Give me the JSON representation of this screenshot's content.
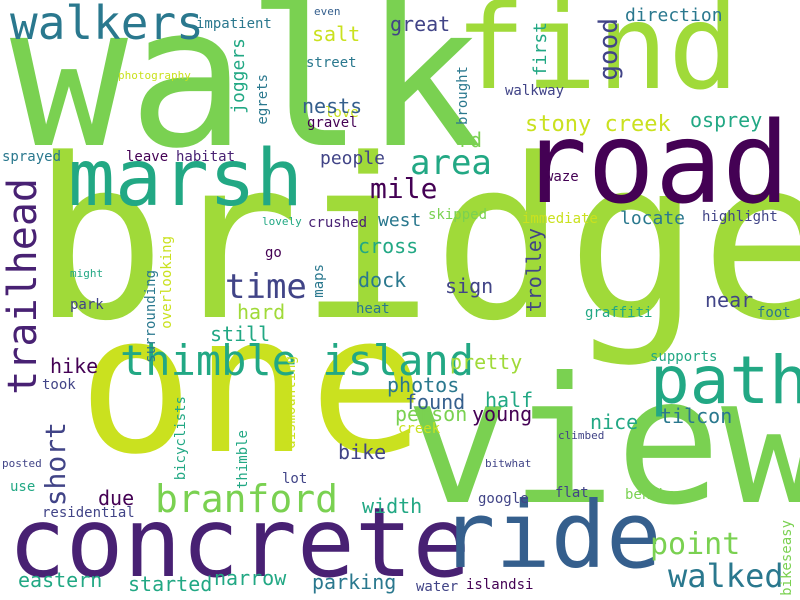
{
  "colors": {
    "background": "#ffffff",
    "palette": [
      "#7ad151",
      "#a0da39",
      "#cae11f",
      "#fde725",
      "#22a884",
      "#2a788e",
      "#355f8d",
      "#414487",
      "#482173",
      "#440154"
    ]
  },
  "words": {
    "walk": "walk",
    "bridge": "bridge",
    "one": "one",
    "view": "view",
    "find": "find",
    "road": "road",
    "marsh": "marsh",
    "concrete": "concrete",
    "ride": "ride",
    "path": "path",
    "thimble_island": "thimble island",
    "walkers": "walkers",
    "trailhead": "trailhead",
    "branford": "branford",
    "walked": "walked",
    "time": "time",
    "area": "area",
    "point": "point",
    "short": "short",
    "mile": "mile",
    "stony_creek": "stony creek",
    "good": "good",
    "osprey": "osprey",
    "direction": "direction",
    "great": "great",
    "impatient": "impatient",
    "even": "even",
    "salt": "salt",
    "first": "first",
    "street": "street",
    "photography": "photography",
    "egrets": "egrets",
    "love": "love",
    "walkway": "walkway",
    "joggers": "joggers",
    "nests": "nests",
    "gravel": "gravel",
    "brought": "brought",
    "rd": "rd",
    "sprayed": "sprayed",
    "leave": "leave",
    "habitat": "habitat",
    "people": "people",
    "waze": "waze",
    "west": "west",
    "skipped": "skipped",
    "immediate": "immediate",
    "locate": "locate",
    "highlight": "highlight",
    "lovely": "lovely",
    "crushed": "crushed",
    "cross": "cross",
    "go": "go",
    "might": "might",
    "maps": "maps",
    "dock": "dock",
    "trolley": "trolley",
    "sign": "sign",
    "near": "near",
    "park": "park",
    "surrounding": "surrounding",
    "overlooking": "overlooking",
    "hard": "hard",
    "heat": "heat",
    "graffiti": "graffiti",
    "foot": "foot",
    "still": "still",
    "supports": "supports",
    "hike": "hike",
    "pretty": "pretty",
    "took": "took",
    "photos": "photos",
    "half": "half",
    "person": "person",
    "young": "young",
    "found": "found",
    "tilcon": "tilcon",
    "nice": "nice",
    "creek": "creek",
    "climbed": "climbed",
    "bicyclists": "bicyclists",
    "dismounting": "dismounting",
    "thimble": "thimble",
    "bike": "bike",
    "posted": "posted",
    "bitwhat": "bitwhat",
    "lot": "lot",
    "use": "use",
    "due": "due",
    "google": "google",
    "flat": "flat",
    "benches": "benches",
    "width": "width",
    "residential": "residential",
    "bikeseasy": "bikeseasy",
    "eastern": "eastern",
    "started": "started",
    "narrow": "narrow",
    "parking": "parking",
    "water": "water",
    "islandsi": "islandsi"
  }
}
